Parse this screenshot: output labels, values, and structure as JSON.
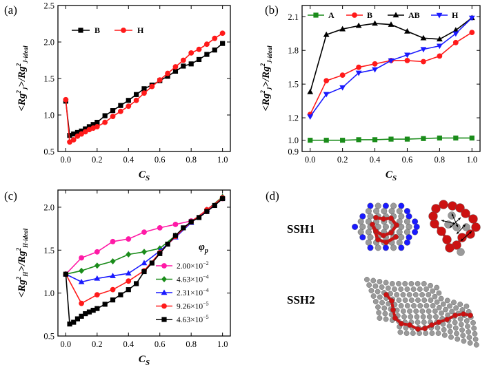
{
  "panel_d": {
    "label": "(d)",
    "structures": [
      {
        "name": "SSH1",
        "label": "SSH1"
      },
      {
        "name": "SSH2",
        "label": "SSH2"
      }
    ]
  },
  "colors": {
    "black": "#000000",
    "red": "#ff1a1a",
    "green": "#1a8c1a",
    "blue": "#1a1aff",
    "magenta": "#ff1aa6",
    "gray": "#9a9a9a",
    "chain_red": "#cc1111"
  },
  "chart_data": [
    {
      "panel": "(a)",
      "type": "line",
      "xlabel": "C",
      "xlabel_sub": "S",
      "ylabel": "<Rg²J>/Rg²J-ideal",
      "ylabel_parts": {
        "a": "<Rg",
        "sup": "2",
        "sub1": "J",
        "b": ">/Rg",
        "sup2": "2",
        "sub2": "J-ideal"
      },
      "xlim": [
        -0.05,
        1.05
      ],
      "ylim": [
        0.5,
        2.5
      ],
      "xticks": [
        0.0,
        0.2,
        0.4,
        0.6,
        0.8,
        1.0
      ],
      "xtick_labels": [
        "0.0",
        "0.2",
        "0.4",
        "0.6",
        "0.8",
        "1.0"
      ],
      "yticks": [
        0.5,
        1.0,
        1.5,
        2.0,
        2.5
      ],
      "ytick_labels": [
        "0.5",
        "1.0",
        "1.5",
        "2.0",
        "2.5"
      ],
      "legend": {
        "placement": "top-left",
        "layout": "row"
      },
      "series": [
        {
          "name": "B",
          "color": "#000000",
          "marker": "square",
          "x": [
            0.0,
            0.025,
            0.05,
            0.075,
            0.1,
            0.125,
            0.15,
            0.175,
            0.2,
            0.25,
            0.3,
            0.35,
            0.4,
            0.45,
            0.5,
            0.55,
            0.6,
            0.65,
            0.7,
            0.75,
            0.8,
            0.85,
            0.9,
            0.95,
            1.0
          ],
          "values": [
            1.19,
            0.72,
            0.74,
            0.76,
            0.78,
            0.81,
            0.84,
            0.87,
            0.9,
            0.99,
            1.06,
            1.13,
            1.2,
            1.28,
            1.36,
            1.41,
            1.47,
            1.53,
            1.6,
            1.67,
            1.7,
            1.76,
            1.83,
            1.89,
            1.98
          ]
        },
        {
          "name": "H",
          "color": "#ff1a1a",
          "marker": "circle",
          "x": [
            0.0,
            0.025,
            0.05,
            0.075,
            0.1,
            0.125,
            0.15,
            0.175,
            0.2,
            0.25,
            0.3,
            0.35,
            0.4,
            0.45,
            0.5,
            0.55,
            0.6,
            0.65,
            0.7,
            0.75,
            0.8,
            0.85,
            0.9,
            0.95,
            1.0
          ],
          "values": [
            1.21,
            0.63,
            0.66,
            0.71,
            0.74,
            0.77,
            0.8,
            0.82,
            0.84,
            0.9,
            0.98,
            1.05,
            1.12,
            1.2,
            1.3,
            1.39,
            1.48,
            1.57,
            1.66,
            1.75,
            1.85,
            1.9,
            1.97,
            2.05,
            2.12
          ]
        }
      ]
    },
    {
      "panel": "(b)",
      "type": "line",
      "xlabel": "C",
      "xlabel_sub": "S",
      "ylabel": "<Rg²J>/Rg²J-ideal",
      "ylabel_parts": {
        "a": "<Rg",
        "sup": "2",
        "sub1": "J",
        "b": ">/Rg",
        "sup2": "2",
        "sub2": "J-ideal"
      },
      "xlim": [
        -0.05,
        1.05
      ],
      "ylim": [
        0.9,
        2.2
      ],
      "xticks": [
        0.0,
        0.2,
        0.4,
        0.6,
        0.8,
        1.0
      ],
      "xtick_labels": [
        "0.0",
        "0.2",
        "0.4",
        "0.6",
        "0.8",
        "1.0"
      ],
      "yticks": [
        0.9,
        1.0,
        1.2,
        1.5,
        1.8,
        2.1
      ],
      "ytick_labels": [
        "0.9",
        "1.0",
        "1.2",
        "1.5",
        "1.8",
        "2.1"
      ],
      "legend": {
        "placement": "top",
        "layout": "row"
      },
      "series": [
        {
          "name": "A",
          "color": "#1a8c1a",
          "marker": "square",
          "x": [
            0.0,
            0.1,
            0.2,
            0.3,
            0.4,
            0.5,
            0.6,
            0.7,
            0.8,
            0.9,
            1.0
          ],
          "values": [
            1.0,
            1.0,
            1.0,
            1.005,
            1.005,
            1.01,
            1.01,
            1.015,
            1.02,
            1.02,
            1.02
          ]
        },
        {
          "name": "B",
          "color": "#ff1a1a",
          "marker": "circle",
          "x": [
            0.0,
            0.1,
            0.2,
            0.3,
            0.4,
            0.5,
            0.6,
            0.7,
            0.8,
            0.9,
            1.0
          ],
          "values": [
            1.23,
            1.53,
            1.58,
            1.65,
            1.68,
            1.71,
            1.71,
            1.7,
            1.75,
            1.87,
            1.96
          ]
        },
        {
          "name": "AB",
          "color": "#000000",
          "marker": "triangle-up",
          "x": [
            0.0,
            0.1,
            0.2,
            0.3,
            0.4,
            0.5,
            0.6,
            0.7,
            0.8,
            0.9,
            1.0
          ],
          "values": [
            1.43,
            1.94,
            1.99,
            2.02,
            2.04,
            2.03,
            1.97,
            1.91,
            1.9,
            1.98,
            2.09
          ]
        },
        {
          "name": "H",
          "color": "#1a1aff",
          "marker": "triangle-down",
          "x": [
            0.0,
            0.1,
            0.2,
            0.3,
            0.4,
            0.5,
            0.6,
            0.7,
            0.8,
            0.9,
            1.0
          ],
          "values": [
            1.21,
            1.41,
            1.47,
            1.6,
            1.63,
            1.71,
            1.76,
            1.81,
            1.84,
            1.95,
            2.09
          ]
        }
      ]
    },
    {
      "panel": "(c)",
      "type": "line",
      "xlabel": "C",
      "xlabel_sub": "S",
      "ylabel": "<Rg²H>/Rg²H-ideal",
      "ylabel_parts": {
        "a": "<Rg",
        "sup": "2",
        "sub1": "H",
        "b": ">/Rg",
        "sup2": "2",
        "sub2": "H-ideal"
      },
      "xlim": [
        -0.05,
        1.05
      ],
      "ylim": [
        0.5,
        2.2
      ],
      "xticks": [
        0.0,
        0.2,
        0.4,
        0.6,
        0.8,
        1.0
      ],
      "xtick_labels": [
        "0.0",
        "0.2",
        "0.4",
        "0.6",
        "0.8",
        "1.0"
      ],
      "yticks": [
        0.5,
        1.0,
        1.5,
        2.0
      ],
      "ytick_labels": [
        "0.5",
        "1.0",
        "1.5",
        "2.0"
      ],
      "legend": {
        "placement": "right",
        "layout": "column",
        "title": "φ",
        "title_sub": "p"
      },
      "series": [
        {
          "name": "2.00×10⁻²",
          "label_base": "2.00×10",
          "label_exp": "−2",
          "color": "#ff1aa6",
          "marker": "circle",
          "x": [
            0.0,
            0.1,
            0.2,
            0.3,
            0.4,
            0.5,
            0.6,
            0.7,
            0.8,
            0.9,
            1.0
          ],
          "values": [
            1.22,
            1.41,
            1.48,
            1.6,
            1.63,
            1.71,
            1.76,
            1.8,
            1.84,
            1.95,
            2.1
          ]
        },
        {
          "name": "4.63×10⁻⁴",
          "label_base": "4.63×10",
          "label_exp": "−4",
          "color": "#1a8c1a",
          "marker": "diamond",
          "x": [
            0.0,
            0.1,
            0.2,
            0.3,
            0.4,
            0.5,
            0.6,
            0.7,
            0.8,
            0.9,
            1.0
          ],
          "values": [
            1.22,
            1.26,
            1.32,
            1.37,
            1.45,
            1.48,
            1.52,
            1.67,
            1.83,
            1.97,
            2.12
          ]
        },
        {
          "name": "2.31×10⁻⁴",
          "label_base": "2.31×10",
          "label_exp": "−4",
          "color": "#1a1aff",
          "marker": "triangle-up",
          "x": [
            0.0,
            0.1,
            0.2,
            0.3,
            0.4,
            0.5,
            0.6,
            0.7,
            0.8,
            0.9,
            1.0
          ],
          "values": [
            1.22,
            1.13,
            1.17,
            1.2,
            1.23,
            1.35,
            1.49,
            1.65,
            1.82,
            1.97,
            2.11
          ]
        },
        {
          "name": "9.26×10⁻⁵",
          "label_base": "9.26×10",
          "label_exp": "−5",
          "color": "#ff1a1a",
          "marker": "circle",
          "x": [
            0.0,
            0.1,
            0.2,
            0.3,
            0.4,
            0.5,
            0.6,
            0.7,
            0.8,
            0.9,
            1.0
          ],
          "values": [
            1.22,
            0.88,
            0.98,
            1.04,
            1.14,
            1.26,
            1.47,
            1.66,
            1.83,
            1.97,
            2.11
          ]
        },
        {
          "name": "4.63×10⁻⁵",
          "label_base": "4.63×10",
          "label_exp": "−5",
          "color": "#000000",
          "marker": "square",
          "x": [
            0.0,
            0.025,
            0.05,
            0.075,
            0.1,
            0.125,
            0.15,
            0.175,
            0.2,
            0.25,
            0.3,
            0.35,
            0.4,
            0.45,
            0.5,
            0.55,
            0.6,
            0.65,
            0.7,
            0.75,
            0.8,
            0.85,
            0.9,
            0.95,
            1.0
          ],
          "values": [
            1.22,
            0.64,
            0.66,
            0.7,
            0.73,
            0.76,
            0.78,
            0.8,
            0.82,
            0.87,
            0.92,
            0.98,
            1.04,
            1.11,
            1.25,
            1.35,
            1.46,
            1.57,
            1.67,
            1.76,
            1.83,
            1.88,
            1.95,
            2.02,
            2.1
          ]
        }
      ]
    }
  ]
}
